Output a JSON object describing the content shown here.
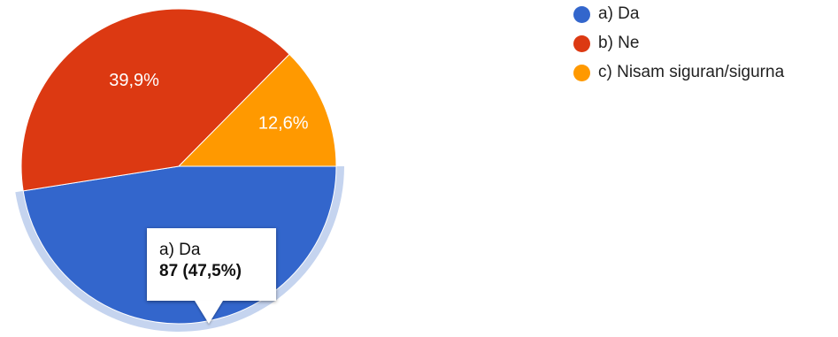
{
  "chart_data": {
    "type": "pie",
    "categories": [
      "a) Da",
      "b) Ne",
      "c) Nisam siguran/sigurna"
    ],
    "values": [
      47.5,
      39.9,
      12.6
    ],
    "labels": [
      "",
      "39,9%",
      "12,6%"
    ],
    "colors": [
      "#3366cc",
      "#dc3912",
      "#ff9900"
    ],
    "highlight_color": "#c5d4ef",
    "highlighted": 0,
    "legend_position": "right",
    "tooltip": {
      "category": "a) Da",
      "value_text": "87 (47,5%)"
    }
  }
}
